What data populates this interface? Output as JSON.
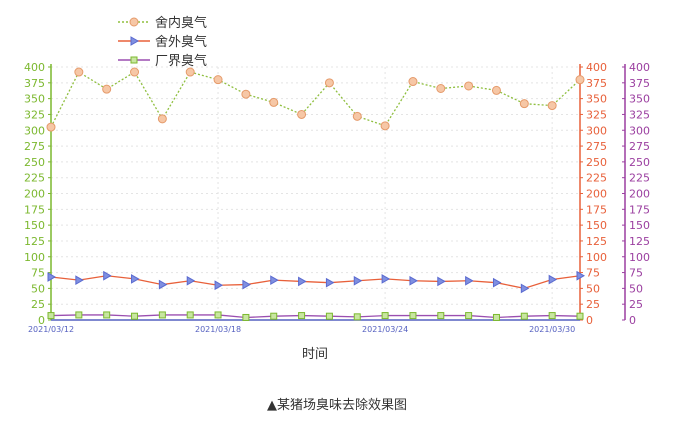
{
  "chart_data": {
    "type": "line",
    "xlabel": "时间",
    "x_tick_labels": [
      "2021/03/12",
      "2021/03/18",
      "2021/03/24",
      "2021/03/30"
    ],
    "x": [
      "03/12",
      "03/13",
      "03/14",
      "03/15",
      "03/16",
      "03/17",
      "03/18",
      "03/19",
      "03/20",
      "03/21",
      "03/22",
      "03/23",
      "03/24",
      "03/25",
      "03/26",
      "03/27",
      "03/28",
      "03/29",
      "03/30",
      "03/31"
    ],
    "y_ticks": [
      0,
      25,
      50,
      75,
      100,
      125,
      150,
      175,
      200,
      225,
      250,
      275,
      300,
      325,
      350,
      375,
      400
    ],
    "ylim": [
      0,
      400
    ],
    "grid": true,
    "legend_position": "top-left",
    "series": [
      {
        "name": "舍内臭气",
        "color": "#8fbf3f",
        "marker": "circle",
        "values": [
          305,
          392,
          365,
          392,
          318,
          392,
          380,
          357,
          344,
          325,
          375,
          322,
          307,
          377,
          366,
          370,
          363,
          342,
          339,
          380
        ]
      },
      {
        "name": "舍外臭气",
        "color": "#e8603a",
        "marker": "triangle",
        "values": [
          68,
          63,
          70,
          65,
          56,
          62,
          55,
          56,
          63,
          61,
          59,
          62,
          65,
          62,
          61,
          62,
          59,
          50,
          64,
          70
        ]
      },
      {
        "name": "厂界臭气",
        "color": "#9b4fb0",
        "marker": "square",
        "values": [
          7,
          8,
          8,
          6,
          8,
          8,
          8,
          4,
          6,
          7,
          6,
          5,
          7,
          7,
          7,
          7,
          4,
          6,
          7,
          6
        ]
      }
    ],
    "axis_colors": {
      "left": "#7cb82f",
      "right1": "#e8603a",
      "right2": "#9b3fa0",
      "x": "#5560c0"
    }
  },
  "caption": "▲某猪场臭味去除效果图"
}
